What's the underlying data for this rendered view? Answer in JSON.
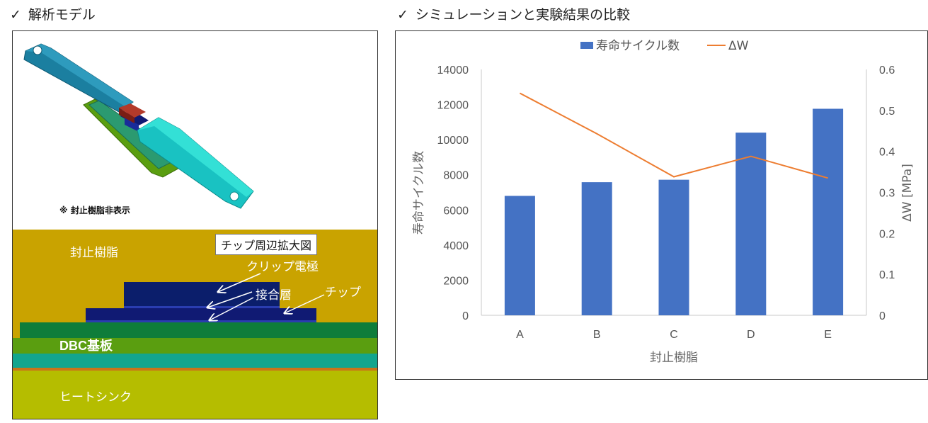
{
  "left_section": {
    "check": "✓",
    "title": "解析モデル",
    "resin_hidden_note": "※ 封止樹脂非表示",
    "zoom_label": "チップ周辺拡大図",
    "labels": {
      "resin": "封止樹脂",
      "clip_electrode": "クリップ電極",
      "joint_layer": "接合層",
      "chip": "チップ",
      "dbc": "DBC基板",
      "heatsink": "ヒートシンク"
    }
  },
  "right_section": {
    "check": "✓",
    "title": "シミュレーションと実験結果の比較"
  },
  "colors": {
    "bar": "#4472c4",
    "line": "#ed7d31",
    "resin": "#c9a300",
    "clip": "#0b1e6b",
    "chip": "#101a73",
    "dbc_top": "#0e7d3a",
    "dbc_mid": "#5a9e10",
    "dbc_bottom": "#12a58e",
    "heatsink": "#b5bd00",
    "copper_green": "#2b9a70"
  },
  "chart_data": {
    "type": "bar",
    "categories": [
      "A",
      "B",
      "C",
      "D",
      "E"
    ],
    "series": [
      {
        "name": "寿命サイクル数",
        "type": "bar",
        "axis": "left",
        "values": [
          6800,
          7580,
          7720,
          10400,
          11760
        ]
      },
      {
        "name": "ΔW",
        "type": "line",
        "axis": "right",
        "values": [
          0.542,
          0.443,
          0.338,
          0.388,
          0.335
        ]
      }
    ],
    "xlabel": "封止樹脂",
    "ylabel": "寿命サイクル数",
    "y2label": "ΔW [MPa]",
    "ylim": [
      0,
      14000
    ],
    "y2lim": [
      0,
      0.6
    ],
    "yticks": [
      "0",
      "2000",
      "4000",
      "6000",
      "8000",
      "10000",
      "12000",
      "14000"
    ],
    "y2ticks": [
      "0",
      "0.1",
      "0.2",
      "0.3",
      "0.4",
      "0.5",
      "0.6"
    ],
    "y2tick_values": [
      0,
      0.1,
      0.2,
      0.3,
      0.4,
      0.5,
      0.6
    ],
    "ytick_values": [
      0,
      2000,
      4000,
      6000,
      8000,
      10000,
      12000,
      14000
    ],
    "grid": false,
    "legend_position": "top-center"
  }
}
